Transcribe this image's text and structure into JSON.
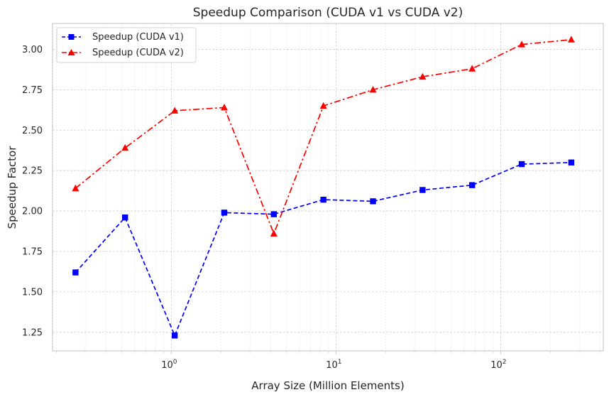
{
  "chart_data": {
    "type": "line",
    "title": "Speedup Comparison (CUDA v1 vs CUDA v2)",
    "xlabel": "Array Size (Million Elements)",
    "ylabel": "Speedup Factor",
    "xscale": "log",
    "xlim": [
      0.19,
      420
    ],
    "ylim": [
      1.135,
      3.16
    ],
    "xticks": [
      1,
      10,
      100
    ],
    "xtick_labels": [
      {
        "base": "10",
        "exp": "0"
      },
      {
        "base": "10",
        "exp": "1"
      },
      {
        "base": "10",
        "exp": "2"
      }
    ],
    "yticks": [
      1.25,
      1.5,
      1.75,
      2.0,
      2.25,
      2.5,
      2.75,
      3.0
    ],
    "ytick_labels": [
      "1.25",
      "1.50",
      "1.75",
      "2.00",
      "2.25",
      "2.50",
      "2.75",
      "3.00"
    ],
    "grid": true,
    "legend_position": "top-left",
    "x": [
      0.262,
      0.524,
      1.049,
      2.097,
      4.194,
      8.389,
      16.777,
      33.554,
      67.109,
      134.218,
      268.435
    ],
    "series": [
      {
        "name": "Speedup (CUDA v1)",
        "color": "#0000ff",
        "marker": "square",
        "linestyle": "dashed",
        "values": [
          1.62,
          1.96,
          1.23,
          1.99,
          1.98,
          2.07,
          2.06,
          2.13,
          2.16,
          2.29,
          2.3
        ]
      },
      {
        "name": "Speedup (CUDA v2)",
        "color": "#ff0000",
        "marker": "triangle",
        "linestyle": "dashdot",
        "values": [
          2.14,
          2.39,
          2.62,
          2.64,
          1.86,
          2.65,
          2.75,
          2.83,
          2.88,
          3.03,
          3.06
        ]
      }
    ]
  }
}
